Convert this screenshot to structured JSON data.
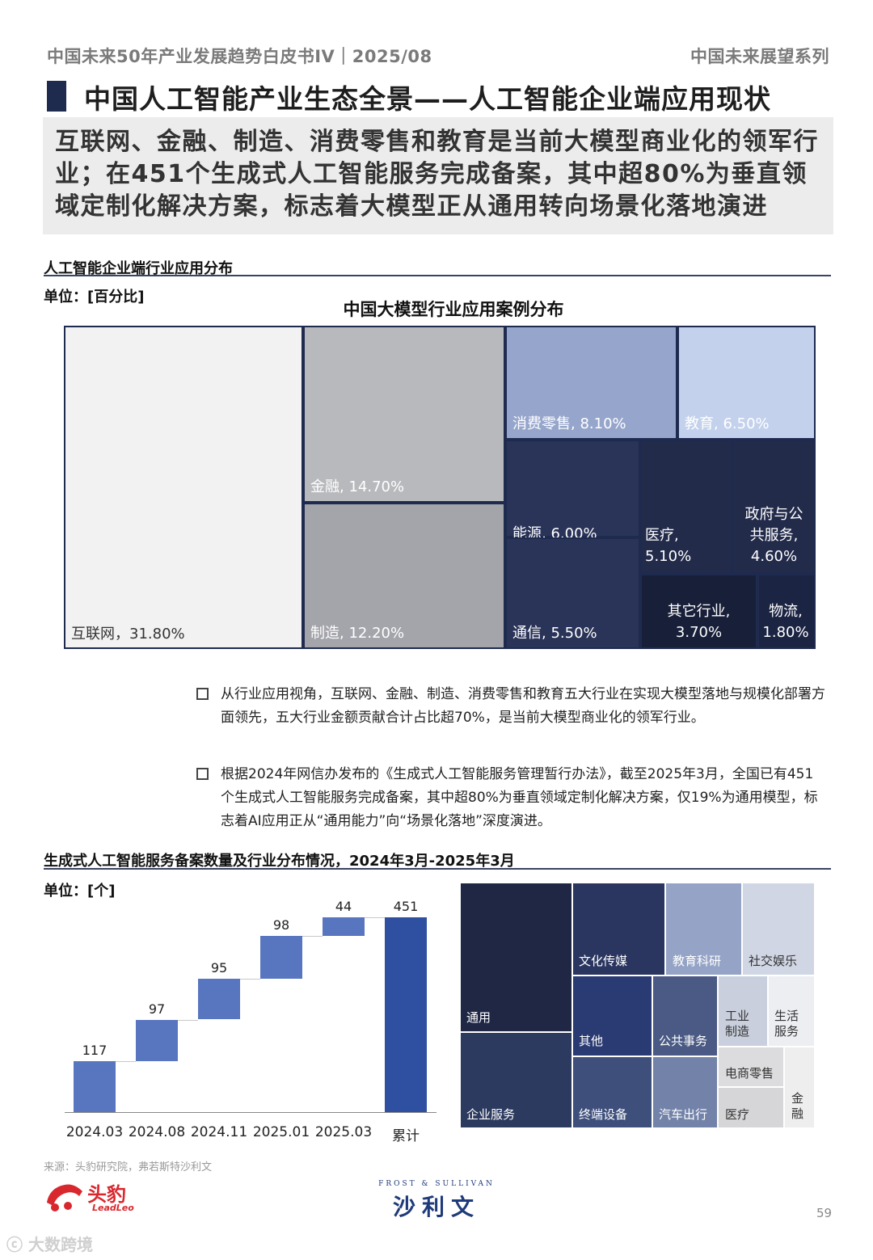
{
  "header": {
    "left": "中国未来50年产业发展趋势白皮书IV｜2025/08",
    "right": "中国未来展望系列"
  },
  "title": "中国人工智能产业生态全景——人工智能企业端应用现状",
  "summary": "互联网、金融、制造、消费零售和教育是当前大模型商业化的领军行业；在451个生成式人工智能服务完成备案，其中超80%为垂直领域定制化解决方案，标志着大模型正从通用转向场景化落地演进",
  "section1": {
    "title": "人工智能企业端行业应用分布",
    "unit": "单位：[百分比]"
  },
  "section2": {
    "title": "生成式人工智能服务备案数量及行业分布情况，2024年3月-2025年3月",
    "unit": "单位：[个]"
  },
  "bullets": [
    "从行业应用视角，互联网、金融、制造、消费零售和教育五大行业在实现大模型落地与规模化部署方面领先，五大行业金额贡献合计占比超70%，是当前大模型商业化的领军行业。",
    "根据2024年网信办发布的《生成式人工智能服务管理暂行办法》，截至2025年3月，全国已有451个生成式人工智能服务完成备案，其中超80%为垂直领域定制化解决方案，仅19%为通用模型，标志着AI应用正从“通用能力”向“场景化落地”深度演进。"
  ],
  "footer": {
    "source": "来源：头豹研究院，弗若斯特沙利文",
    "logo_left_cn": "头豹",
    "logo_left_en": "LeadLeo",
    "logo_center_en": "FROST & SULLIVAN",
    "logo_center_cn": "沙利文",
    "page": "59",
    "watermark": "大数跨境"
  },
  "chart_data": [
    {
      "type": "treemap",
      "title": "中国大模型行业应用案例分布",
      "items": [
        {
          "label": "互联网，31.80%",
          "value": 31.8,
          "color": "#f2f2f2",
          "text_color": "#333333"
        },
        {
          "label": "金融, 14.70%",
          "value": 14.7,
          "color": "#b8b9bd",
          "text_color": "#ffffff"
        },
        {
          "label": "制造, 12.20%",
          "value": 12.2,
          "color": "#a4a5ab",
          "text_color": "#ffffff"
        },
        {
          "label": "消费零售, 8.10%",
          "value": 8.1,
          "color": "#96a5cb",
          "text_color": "#ffffff"
        },
        {
          "label": "教育, 6.50%",
          "value": 6.5,
          "color": "#c3d1ec",
          "text_color": "#ffffff"
        },
        {
          "label": "能源, 6.00%",
          "value": 6.0,
          "color": "#2a3358",
          "text_color": "#ffffff"
        },
        {
          "label": "通信, 5.50%",
          "value": 5.5,
          "color": "#2a3358",
          "text_color": "#ffffff"
        },
        {
          "label": "医疗,\n5.10%",
          "value": 5.1,
          "color": "#232b4b",
          "text_color": "#ffffff"
        },
        {
          "label": "政府与公\n共服务,\n4.60%",
          "value": 4.6,
          "color": "#232b4b",
          "text_color": "#ffffff"
        },
        {
          "label": "其它行业,\n3.70%",
          "value": 3.7,
          "color": "#181f39",
          "text_color": "#ffffff"
        },
        {
          "label": "物流,\n1.80%",
          "value": 1.8,
          "color": "#1c2443",
          "text_color": "#ffffff"
        }
      ]
    },
    {
      "type": "bar",
      "subtype": "waterfall",
      "categories": [
        "2024.03",
        "2024.08",
        "2024.11",
        "2025.01",
        "2025.03",
        "累计"
      ],
      "values": [
        117,
        97,
        95,
        98,
        44,
        451
      ],
      "colors": {
        "increment": "#5875bf",
        "total": "#2f4fa0"
      }
    },
    {
      "type": "treemap",
      "items": [
        {
          "label": "通用",
          "color": "#1f2745"
        },
        {
          "label": "企业服务",
          "color": "#2c3a5f"
        },
        {
          "label": "文化传媒",
          "color": "#2a3660"
        },
        {
          "label": "教育科研",
          "color": "#95a4c6"
        },
        {
          "label": "社交娱乐",
          "color": "#d0d6e4"
        },
        {
          "label": "其他",
          "color": "#2a3a72"
        },
        {
          "label": "公共事务",
          "color": "#4a5a84"
        },
        {
          "label": "工业\n制造",
          "color": "#c9cfdc"
        },
        {
          "label": "生活\n服务",
          "color": "#eceef2"
        },
        {
          "label": "终端设备",
          "color": "#3e4f7c"
        },
        {
          "label": "汽车出行",
          "color": "#7282a8"
        },
        {
          "label": "电商零售",
          "color": "#dcdcdf"
        },
        {
          "label": "医疗",
          "color": "#d6d6d8"
        },
        {
          "label": "金\n融",
          "color": "#eeeeef"
        }
      ]
    }
  ]
}
